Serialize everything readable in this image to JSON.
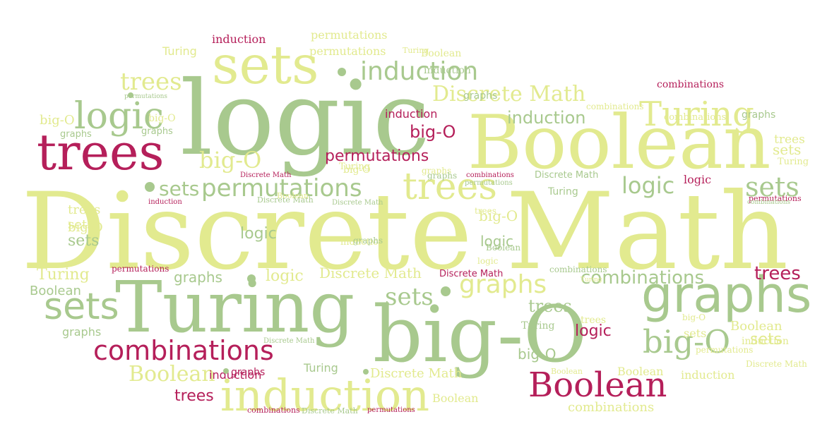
{
  "palette": {
    "lime": "#e2ea8f",
    "sage": "#a8c98e",
    "berry": "#b51f5a"
  },
  "words": [
    {
      "text": "Discrete Math",
      "color": "lime"
    },
    {
      "text": "logic",
      "color": "sage"
    },
    {
      "text": "Boolean",
      "color": "lime"
    },
    {
      "text": "Turing",
      "color": "sage"
    },
    {
      "text": "big-O",
      "color": "sage"
    },
    {
      "text": "sets",
      "color": "lime"
    },
    {
      "text": "trees",
      "color": "berry"
    },
    {
      "text": "induction",
      "color": "lime"
    },
    {
      "text": "graphs",
      "color": "sage"
    },
    {
      "text": "Turing",
      "color": "lime"
    },
    {
      "text": "logic",
      "color": "sage"
    },
    {
      "text": "trees",
      "color": "lime"
    },
    {
      "text": "sets",
      "color": "sage"
    },
    {
      "text": "permutations",
      "color": "sage"
    },
    {
      "text": "Boolean",
      "color": "berry"
    },
    {
      "text": "combinations",
      "color": "berry"
    },
    {
      "text": "big-O",
      "color": "sage"
    },
    {
      "text": "induction",
      "color": "sage"
    },
    {
      "text": "graphs",
      "color": "lime"
    },
    {
      "text": "Discrete Math",
      "color": "lime"
    },
    {
      "text": "trees",
      "color": "lime"
    },
    {
      "text": "logic",
      "color": "sage"
    },
    {
      "text": "sets",
      "color": "sage"
    },
    {
      "text": "permutations",
      "color": "berry"
    },
    {
      "text": "big-O",
      "color": "lime"
    },
    {
      "text": "sets",
      "color": "sage"
    },
    {
      "text": "combinations",
      "color": "sage"
    },
    {
      "text": "induction",
      "color": "sage"
    },
    {
      "text": "big-O",
      "color": "berry"
    },
    {
      "text": "trees",
      "color": "berry"
    },
    {
      "text": "graphs",
      "color": "sage"
    },
    {
      "text": "Turing",
      "color": "lime"
    },
    {
      "text": "sets",
      "color": "lime"
    },
    {
      "text": "logic",
      "color": "sage"
    },
    {
      "text": "Boolean",
      "color": "lime"
    },
    {
      "text": "trees",
      "color": "berry"
    },
    {
      "text": "sets",
      "color": "sage"
    },
    {
      "text": "trees",
      "color": "sage"
    },
    {
      "text": "induction",
      "color": "berry"
    },
    {
      "text": "logic",
      "color": "lime"
    },
    {
      "text": "logic",
      "color": "sage"
    },
    {
      "text": "big-O",
      "color": "lime"
    },
    {
      "text": "Boolean",
      "color": "sage"
    },
    {
      "text": "permutations",
      "color": "lime"
    },
    {
      "text": "induction",
      "color": "berry"
    },
    {
      "text": "logic",
      "color": "berry"
    },
    {
      "text": "Discrete Math",
      "color": "lime"
    },
    {
      "text": "combinations",
      "color": "berry"
    },
    {
      "text": "sets",
      "color": "lime"
    },
    {
      "text": "trees",
      "color": "lime"
    },
    {
      "text": "Boolean",
      "color": "lime"
    },
    {
      "text": "graphs",
      "color": "sage"
    },
    {
      "text": "logic",
      "color": "berry"
    },
    {
      "text": "big-O",
      "color": "sage"
    },
    {
      "text": "sets",
      "color": "sage"
    },
    {
      "text": "sets",
      "color": "lime"
    },
    {
      "text": "trees",
      "color": "lime"
    },
    {
      "text": "big-O",
      "color": "lime"
    },
    {
      "text": "Boolean",
      "color": "lime"
    },
    {
      "text": "big-O",
      "color": "lime"
    },
    {
      "text": "graphs",
      "color": "sage"
    },
    {
      "text": "Turing",
      "color": "lime"
    },
    {
      "text": "permutations",
      "color": "lime"
    },
    {
      "text": "Discrete Math",
      "color": "lime"
    },
    {
      "text": "induction",
      "color": "berry"
    },
    {
      "text": "graphs",
      "color": "sage"
    },
    {
      "text": "Turing",
      "color": "sage"
    },
    {
      "text": "Boolean",
      "color": "lime"
    },
    {
      "text": "Turing",
      "color": "sage"
    },
    {
      "text": "combinations",
      "color": "lime"
    },
    {
      "text": "big-O",
      "color": "lime"
    },
    {
      "text": "graphs",
      "color": "sage"
    },
    {
      "text": "graphs",
      "color": "berry"
    },
    {
      "text": "induction",
      "color": "lime"
    },
    {
      "text": "Boolean",
      "color": "lime"
    },
    {
      "text": "Discrete Math",
      "color": "sage"
    },
    {
      "text": "Turing",
      "color": "sage"
    },
    {
      "text": "permutations",
      "color": "berry"
    },
    {
      "text": "Discrete Math",
      "color": "berry"
    },
    {
      "text": "Turing",
      "color": "lime"
    },
    {
      "text": "graphs",
      "color": "sage"
    },
    {
      "text": "combinations",
      "color": "sage"
    },
    {
      "text": "permutations",
      "color": "berry"
    },
    {
      "text": "Discrete Math",
      "color": "sage"
    },
    {
      "text": "Discrete Math",
      "color": "berry"
    },
    {
      "text": "induction",
      "color": "berry"
    },
    {
      "text": "combinations",
      "color": "lime"
    },
    {
      "text": "combinations",
      "color": "berry"
    },
    {
      "text": "combinations",
      "color": "berry"
    },
    {
      "text": "permutations",
      "color": "berry"
    },
    {
      "text": "permutations",
      "color": "sage"
    },
    {
      "text": "Discrete Math",
      "color": "sage"
    },
    {
      "text": "Discrete Math",
      "color": "sage"
    },
    {
      "text": "Discrete Math",
      "color": "sage"
    },
    {
      "text": "permutations",
      "color": "sage"
    },
    {
      "text": "combinations",
      "color": "sage"
    },
    {
      "text": "Turing",
      "color": "lime"
    },
    {
      "text": "trees",
      "color": "lime"
    },
    {
      "text": "sets",
      "color": "lime"
    },
    {
      "text": "induction",
      "color": "lime"
    },
    {
      "text": "big-O",
      "color": "lime"
    },
    {
      "text": "graphs",
      "color": "lime"
    },
    {
      "text": "logic",
      "color": "lime"
    },
    {
      "text": "Boolean",
      "color": "sage"
    },
    {
      "text": "Boolean",
      "color": "lime"
    },
    {
      "text": "induction",
      "color": "lime"
    },
    {
      "text": "big-O",
      "color": "lime"
    },
    {
      "text": "graphs",
      "color": "sage"
    },
    {
      "text": "trees",
      "color": "lime"
    },
    {
      "text": "permutations",
      "color": "lime"
    },
    {
      "text": "Turing",
      "color": "lime"
    },
    {
      "text": "graphs",
      "color": "sage"
    },
    {
      "text": "combinations",
      "color": "lime"
    },
    {
      "text": "Discrete Math",
      "color": "lime"
    },
    {
      "text": "Boolean",
      "color": "lime"
    },
    {
      "text": "induction",
      "color": "sage"
    },
    {
      "text": "Turing",
      "color": "lime"
    }
  ]
}
